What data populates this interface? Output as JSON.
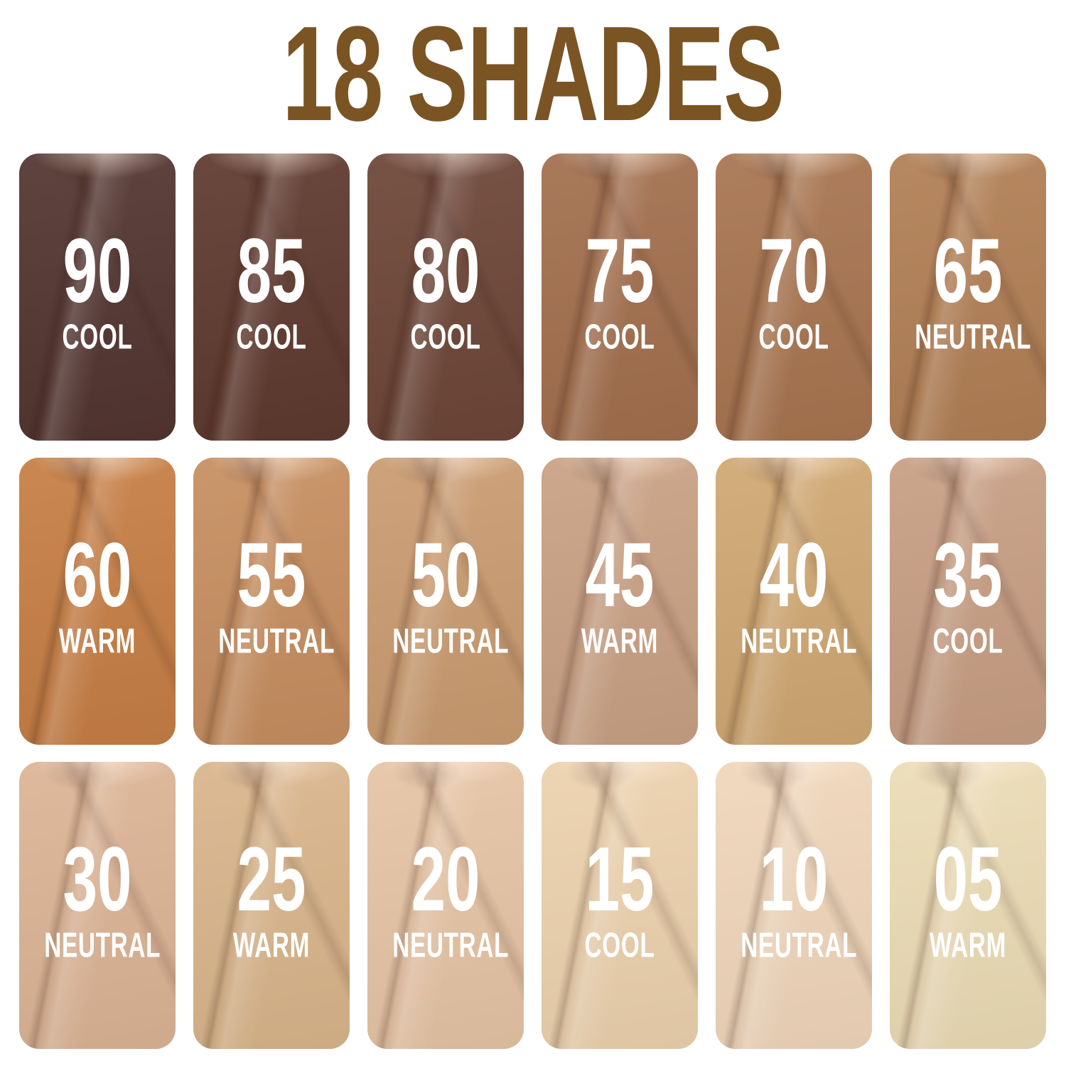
{
  "title": {
    "text": "18 SHADES",
    "color": "#7b5424"
  },
  "labels": {
    "cool": "COOL",
    "neutral": "NEUTRAL",
    "warm": "WARM"
  },
  "text_color": "#ffffff",
  "background_color": "#ffffff",
  "shades": [
    {
      "number": "90",
      "undertone": "COOL",
      "color": "#533530"
    },
    {
      "number": "85",
      "undertone": "COOL",
      "color": "#5f3a2f"
    },
    {
      "number": "80",
      "undertone": "COOL",
      "color": "#6d4638"
    },
    {
      "number": "75",
      "undertone": "COOL",
      "color": "#a26f4e"
    },
    {
      "number": "70",
      "undertone": "COOL",
      "color": "#a87550"
    },
    {
      "number": "65",
      "undertone": "NEUTRAL",
      "color": "#b17f55"
    },
    {
      "number": "60",
      "undertone": "WARM",
      "color": "#c67e45"
    },
    {
      "number": "55",
      "undertone": "NEUTRAL",
      "color": "#c68e60"
    },
    {
      "number": "50",
      "undertone": "NEUTRAL",
      "color": "#ca9c71"
    },
    {
      "number": "45",
      "undertone": "WARM",
      "color": "#c9a184"
    },
    {
      "number": "40",
      "undertone": "NEUTRAL",
      "color": "#d0a873"
    },
    {
      "number": "35",
      "undertone": "COOL",
      "color": "#c79e83"
    },
    {
      "number": "30",
      "undertone": "NEUTRAL",
      "color": "#dcb495"
    },
    {
      "number": "25",
      "undertone": "WARM",
      "color": "#d9b58b"
    },
    {
      "number": "20",
      "undertone": "NEUTRAL",
      "color": "#e6c4a4"
    },
    {
      "number": "15",
      "undertone": "COOL",
      "color": "#ecd1ad"
    },
    {
      "number": "10",
      "undertone": "NEUTRAL",
      "color": "#f0d6bb"
    },
    {
      "number": "05",
      "undertone": "WARM",
      "color": "#ecdcb6"
    }
  ]
}
